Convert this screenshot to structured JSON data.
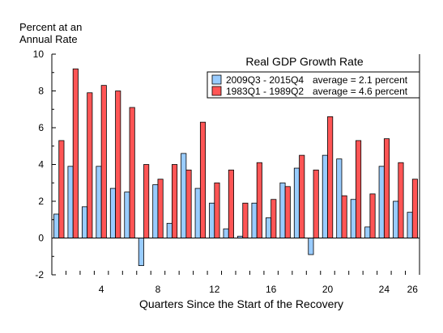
{
  "chart_data": {
    "type": "bar",
    "title": "Real GDP Growth Rate",
    "ylabel_line1": "Percent at an",
    "ylabel_line2": "Annual Rate",
    "xlabel": "Quarters Since the Start of the Recovery",
    "ylim": [
      -2,
      10
    ],
    "yticks": [
      -2,
      0,
      2,
      4,
      6,
      8,
      10
    ],
    "xtick_labels": [
      4,
      8,
      12,
      16,
      20,
      24,
      26
    ],
    "categories": [
      1,
      2,
      3,
      4,
      5,
      6,
      7,
      8,
      9,
      10,
      11,
      12,
      13,
      14,
      15,
      16,
      17,
      18,
      19,
      20,
      21,
      22,
      23,
      24,
      25,
      26
    ],
    "legend_position": "top-right",
    "grid": false,
    "series": [
      {
        "name": "2009Q3 - 2015Q4",
        "average_label": "average = 2.1 percent",
        "color": "#99ccff",
        "values": [
          1.3,
          3.9,
          1.7,
          3.9,
          2.7,
          2.5,
          -1.5,
          2.9,
          0.8,
          4.6,
          2.7,
          1.9,
          0.5,
          0.1,
          1.9,
          1.1,
          3.0,
          3.8,
          -0.9,
          4.5,
          4.3,
          2.1,
          0.6,
          3.9,
          2.0,
          1.4
        ]
      },
      {
        "name": "1983Q1 - 1989Q2",
        "average_label": "average = 4.6 percent",
        "color": "#ff5555",
        "values": [
          5.3,
          9.2,
          7.9,
          8.3,
          8.0,
          7.1,
          4.0,
          3.2,
          4.0,
          3.7,
          6.3,
          3.0,
          3.7,
          1.9,
          4.1,
          2.1,
          2.8,
          4.5,
          3.7,
          6.6,
          2.3,
          5.3,
          2.4,
          5.4,
          4.1,
          3.2
        ]
      }
    ]
  }
}
